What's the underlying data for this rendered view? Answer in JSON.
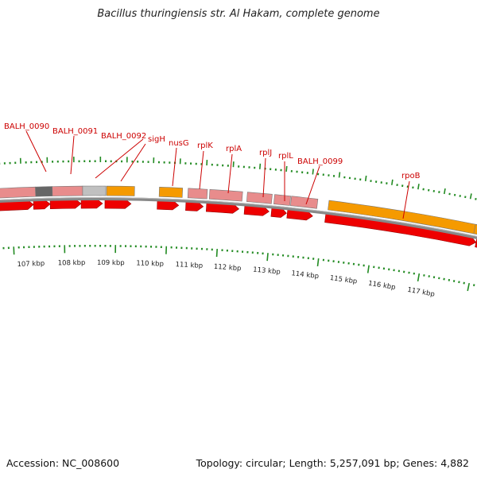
{
  "title": "Bacillus thuringiensis str. Al Hakam, complete genome",
  "accession": "Accession: NC_008600",
  "summary": "Topology: circular; Length: 5,257,091 bp; Genes: 4,882",
  "colors": {
    "cds_forward": "#ee0000",
    "cds_pink": "#e88c8c",
    "rna_orange": "#f59a00",
    "tick_green": "#228b22",
    "backbone": "#888888",
    "label_red": "#cc0000"
  },
  "gene_labels": [
    "BALH_0090",
    "BALH_0091",
    "BALH_0092",
    "sigH",
    "nusG",
    "rplK",
    "rplA",
    "rplJ",
    "rplL",
    "BALH_0099",
    "rpoB"
  ],
  "scale_labels": [
    "107 kbp",
    "108 kbp",
    "109 kbp",
    "110 kbp",
    "111 kbp",
    "112 kbp",
    "113 kbp",
    "114 kbp",
    "115 kbp",
    "116 kbp",
    "117 kbp"
  ]
}
